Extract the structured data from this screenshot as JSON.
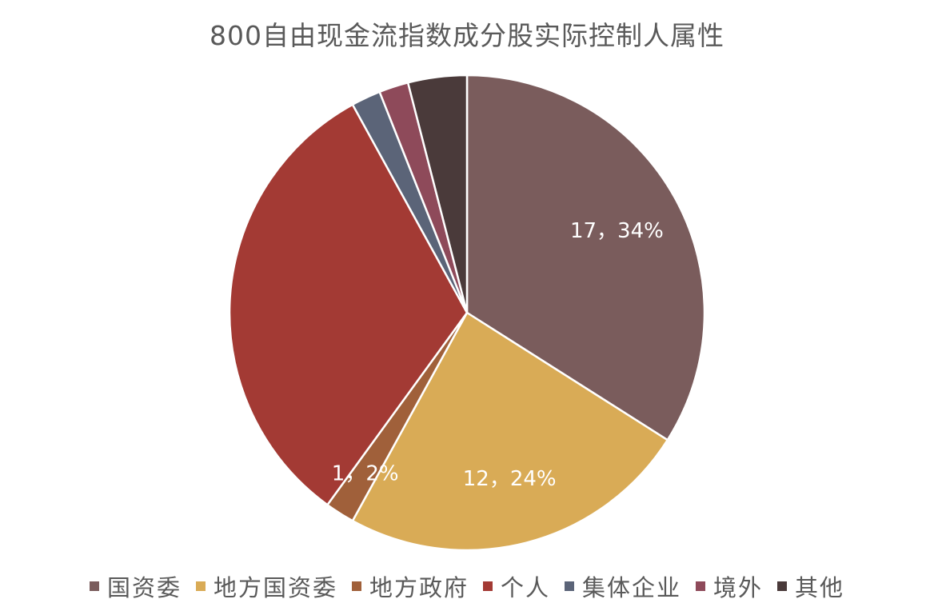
{
  "chart_data": {
    "type": "pie",
    "title": "800自由现金流指数成分股实际控制人属性",
    "legend_position": "bottom",
    "slices": [
      {
        "name": "国资委",
        "value": 17,
        "percent": "34%",
        "label": "17，34%",
        "color": "#7a5c5c"
      },
      {
        "name": "地方国资委",
        "value": 12,
        "percent": "24%",
        "label": "12，24%",
        "color": "#d9ab56"
      },
      {
        "name": "地方政府",
        "value": 1,
        "percent": "2%",
        "label": "1，2%",
        "color": "#a0603a"
      },
      {
        "name": "个人",
        "value": 16,
        "percent": "",
        "label": "",
        "color": "#a33a34"
      },
      {
        "name": "集体企业",
        "value": 1,
        "percent": "",
        "label": "",
        "color": "#5b6478"
      },
      {
        "name": "境外",
        "value": 1,
        "percent": "",
        "label": "",
        "color": "#8e4a5a"
      },
      {
        "name": "其他",
        "value": 2,
        "percent": "",
        "label": "",
        "color": "#4a3a3a"
      }
    ]
  }
}
